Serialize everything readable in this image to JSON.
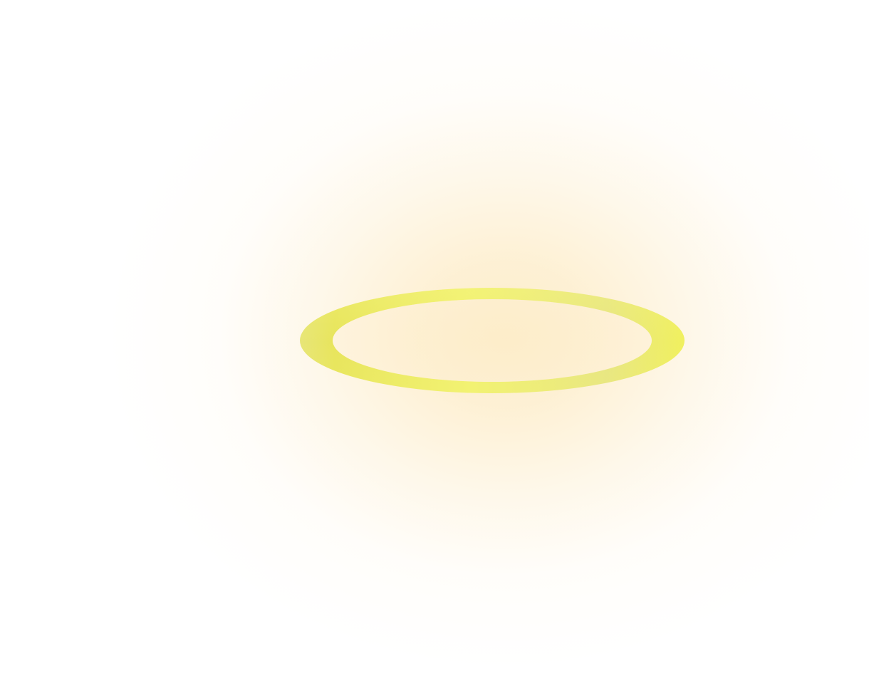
{
  "scene": {
    "subject": "halo-ring",
    "colors": {
      "background": "#ffffff",
      "glow_center": "#fdecc8",
      "ring_primary": "#f2f272",
      "ring_shadow": "#e6e35a",
      "ring_highlight": "#f4f47e",
      "ring_muted": "#e6e486",
      "ring_inner": "#fdedc9"
    }
  }
}
